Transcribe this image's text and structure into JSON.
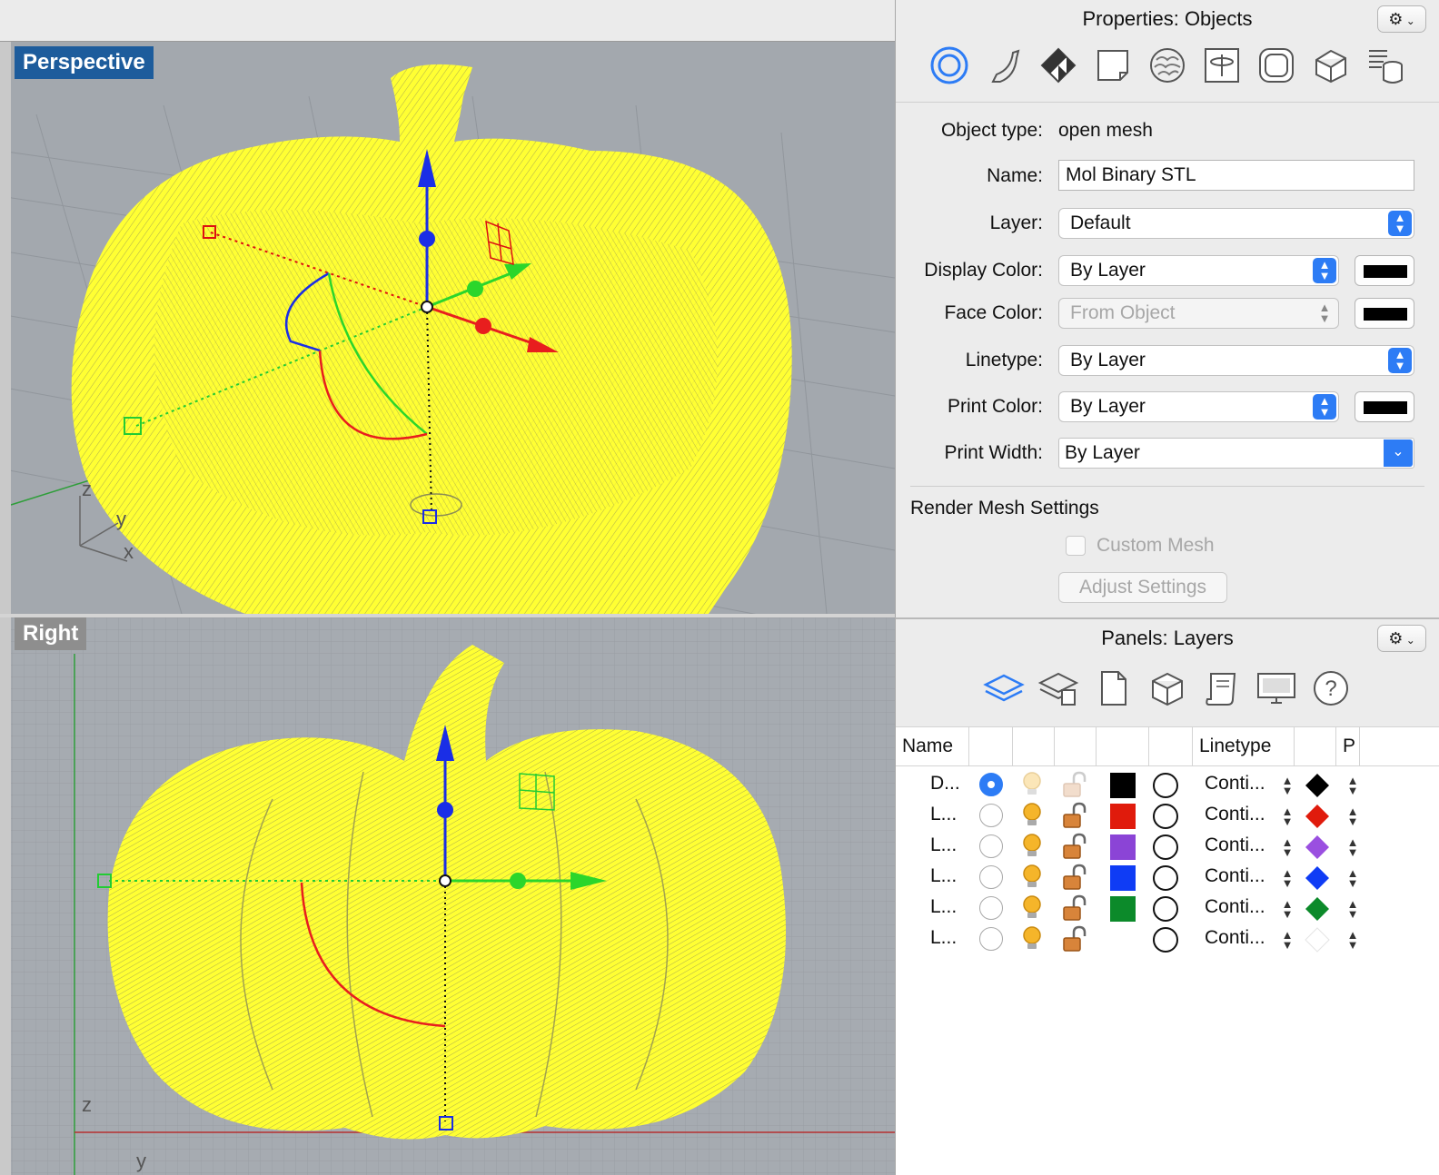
{
  "viewports": {
    "perspective": {
      "label": "Perspective",
      "axes": [
        "z",
        "y",
        "x"
      ]
    },
    "right": {
      "label": "Right",
      "axes": [
        "z",
        "y"
      ]
    }
  },
  "properties": {
    "title": "Properties: Objects",
    "tab_icons": [
      "object-icon",
      "curve-icon",
      "material-icon",
      "page-icon",
      "texture-icon",
      "mapping-icon",
      "shape-icon",
      "solid-icon",
      "database-icon"
    ],
    "object_type_label": "Object type:",
    "object_type_value": "open mesh",
    "name_label": "Name:",
    "name_value": "Mol Binary STL",
    "layer_label": "Layer:",
    "layer_value": "Default",
    "display_color_label": "Display Color:",
    "display_color_value": "By Layer",
    "face_color_label": "Face Color:",
    "face_color_value": "From Object",
    "linetype_label": "Linetype:",
    "linetype_value": "By Layer",
    "print_color_label": "Print Color:",
    "print_color_value": "By Layer",
    "print_width_label": "Print Width:",
    "print_width_value": "By Layer",
    "render_mesh_title": "Render Mesh Settings",
    "custom_mesh_label": "Custom Mesh",
    "adjust_settings_label": "Adjust Settings"
  },
  "layers": {
    "title": "Panels: Layers",
    "tab_icons": [
      "layers-icon",
      "layer-states-icon",
      "page-icon",
      "box-icon",
      "scroll-icon",
      "display-icon",
      "help-icon"
    ],
    "columns": {
      "name": "Name",
      "linetype": "Linetype",
      "print": "P"
    },
    "rows": [
      {
        "name": "D...",
        "current": true,
        "color": "#000000",
        "linetype": "Conti...",
        "print_color": "#000000"
      },
      {
        "name": "L...",
        "current": false,
        "color": "#e01b0c",
        "linetype": "Conti...",
        "print_color": "#e01b0c"
      },
      {
        "name": "L...",
        "current": false,
        "color": "#8b44d6",
        "linetype": "Conti...",
        "print_color": "#9a4fe0"
      },
      {
        "name": "L...",
        "current": false,
        "color": "#0f3cf5",
        "linetype": "Conti...",
        "print_color": "#0f3cf5"
      },
      {
        "name": "L...",
        "current": false,
        "color": "#0c8a2a",
        "linetype": "Conti...",
        "print_color": "#0c8a2a"
      },
      {
        "name": "L...",
        "current": false,
        "color": "",
        "linetype": "Conti...",
        "print_color": ""
      }
    ]
  },
  "colors": {
    "mesh_yellow": "#ffff33",
    "accent_blue": "#2d7cf5",
    "axis_red": "#e81e1e",
    "axis_green": "#2bd62b",
    "axis_blue": "#1a2ee6"
  }
}
